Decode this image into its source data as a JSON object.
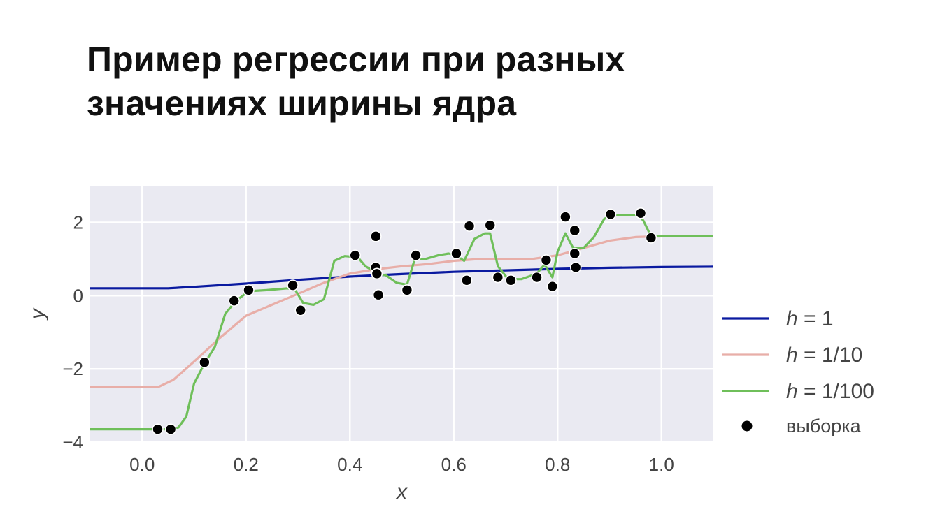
{
  "slide": {
    "title_lines": [
      "Пример регрессии при разных",
      "значениях ширины ядра"
    ]
  },
  "chart_data": {
    "type": "line",
    "style": "seaborn-darkgrid",
    "xlabel": "x",
    "ylabel": "y",
    "xlim": [
      -0.1,
      1.1
    ],
    "ylim": [
      -4.0,
      3.0
    ],
    "xticks": [
      0.0,
      0.2,
      0.4,
      0.6,
      0.8,
      1.0
    ],
    "xtick_labels": [
      "0.0",
      "0.2",
      "0.4",
      "0.6",
      "0.8",
      "1.0"
    ],
    "yticks": [
      -4,
      -2,
      0,
      2
    ],
    "ytick_labels": [
      "−4",
      "−2",
      "0",
      "2"
    ],
    "grid": true,
    "legend_position": "right",
    "colors": {
      "background": "#EAEAF2",
      "grid": "#FFFFFF",
      "h1": "#0A1AA0",
      "h10": "#E8AEA8",
      "h100": "#6FBF5A",
      "sample": "#000000"
    },
    "series": [
      {
        "name": "h = 1",
        "legend_italic": "h",
        "legend_rest": " = 1",
        "color": "#0A1AA0",
        "x": [
          -0.1,
          0.0,
          0.05,
          0.1,
          0.2,
          0.3,
          0.4,
          0.5,
          0.6,
          0.7,
          0.8,
          0.9,
          1.0,
          1.1
        ],
        "y": [
          0.2,
          0.2,
          0.2,
          0.24,
          0.33,
          0.43,
          0.52,
          0.59,
          0.65,
          0.69,
          0.73,
          0.76,
          0.78,
          0.79
        ]
      },
      {
        "name": "h = 1/10",
        "legend_italic": "h",
        "legend_rest": " = 1/10",
        "color": "#E8AEA8",
        "x": [
          -0.1,
          0.0,
          0.03,
          0.06,
          0.1,
          0.15,
          0.2,
          0.25,
          0.3,
          0.35,
          0.4,
          0.45,
          0.5,
          0.55,
          0.6,
          0.65,
          0.7,
          0.75,
          0.8,
          0.85,
          0.9,
          0.95,
          1.0,
          1.1
        ],
        "y": [
          -2.5,
          -2.5,
          -2.5,
          -2.3,
          -1.8,
          -1.15,
          -0.55,
          -0.25,
          0.05,
          0.35,
          0.6,
          0.72,
          0.8,
          0.86,
          0.95,
          1.0,
          1.0,
          1.0,
          1.1,
          1.3,
          1.5,
          1.6,
          1.62,
          1.62
        ]
      },
      {
        "name": "h = 1/100",
        "legend_italic": "h",
        "legend_rest": " = 1/100",
        "color": "#6FBF5A",
        "x": [
          -0.1,
          0.03,
          0.055,
          0.07,
          0.085,
          0.1,
          0.12,
          0.14,
          0.16,
          0.18,
          0.205,
          0.24,
          0.28,
          0.295,
          0.31,
          0.33,
          0.35,
          0.37,
          0.39,
          0.415,
          0.43,
          0.455,
          0.47,
          0.49,
          0.51,
          0.525,
          0.545,
          0.57,
          0.59,
          0.605,
          0.62,
          0.64,
          0.66,
          0.67,
          0.685,
          0.705,
          0.73,
          0.76,
          0.775,
          0.79,
          0.8,
          0.815,
          0.83,
          0.85,
          0.87,
          0.89,
          0.91,
          0.93,
          0.955,
          0.965,
          0.98,
          1.0,
          1.1
        ],
        "y": [
          -3.65,
          -3.65,
          -3.65,
          -3.6,
          -3.3,
          -2.4,
          -1.85,
          -1.4,
          -0.5,
          -0.15,
          0.12,
          0.15,
          0.2,
          0.15,
          -0.2,
          -0.25,
          -0.1,
          0.95,
          1.08,
          1.05,
          0.8,
          0.6,
          0.55,
          0.35,
          0.3,
          1.0,
          1.0,
          1.1,
          1.15,
          1.1,
          0.95,
          1.55,
          1.7,
          1.7,
          0.8,
          0.45,
          0.45,
          0.6,
          0.85,
          0.5,
          1.2,
          1.7,
          1.3,
          1.3,
          1.6,
          2.1,
          2.2,
          2.2,
          2.2,
          2.05,
          1.62,
          1.62,
          1.62
        ]
      }
    ],
    "samples": {
      "name": "выборка",
      "x": [
        0.03,
        0.055,
        0.12,
        0.177,
        0.205,
        0.29,
        0.305,
        0.41,
        0.45,
        0.45,
        0.452,
        0.455,
        0.51,
        0.527,
        0.605,
        0.625,
        0.63,
        0.67,
        0.685,
        0.71,
        0.76,
        0.778,
        0.79,
        0.815,
        0.833,
        0.833,
        0.835,
        0.902,
        0.96,
        0.98
      ],
      "y": [
        -3.65,
        -3.65,
        -1.82,
        -0.14,
        0.15,
        0.28,
        -0.4,
        1.1,
        1.62,
        0.77,
        0.6,
        0.02,
        0.15,
        1.1,
        1.15,
        0.42,
        1.9,
        1.92,
        0.5,
        0.42,
        0.5,
        0.97,
        0.25,
        2.15,
        1.78,
        1.15,
        0.77,
        2.22,
        2.25,
        1.58
      ]
    }
  }
}
